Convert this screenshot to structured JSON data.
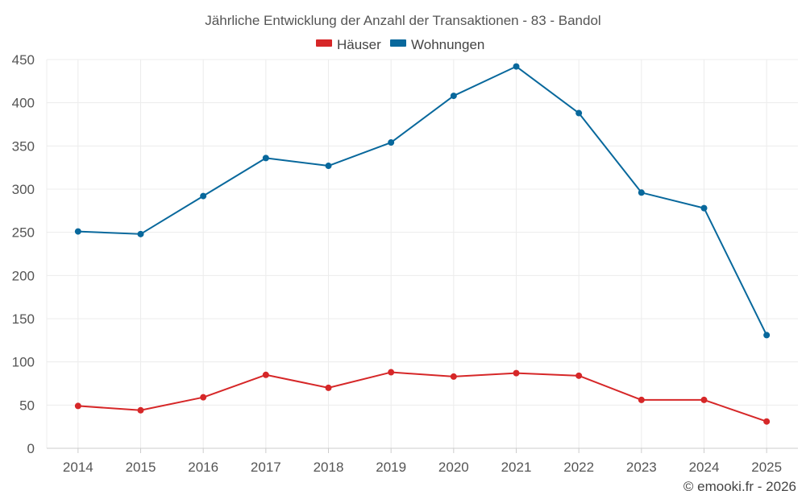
{
  "chart_data": {
    "type": "line",
    "title": "Jährliche Entwicklung der Anzahl der Transaktionen - 83 - Bandol",
    "categories": [
      "2014",
      "2015",
      "2016",
      "2017",
      "2018",
      "2019",
      "2020",
      "2021",
      "2022",
      "2023",
      "2024",
      "2025"
    ],
    "ylim": [
      0,
      450
    ],
    "yticks": [
      0,
      50,
      100,
      150,
      200,
      250,
      300,
      350,
      400,
      450
    ],
    "grid": true,
    "legend_position": "top-center",
    "series": [
      {
        "name": "Häuser",
        "color": "#d62728",
        "values": [
          49,
          44,
          59,
          85,
          70,
          88,
          83,
          87,
          84,
          56,
          56,
          31
        ]
      },
      {
        "name": "Wohnungen",
        "color": "#08689c",
        "values": [
          251,
          248,
          292,
          336,
          327,
          354,
          408,
          442,
          388,
          296,
          278,
          131
        ]
      }
    ]
  },
  "credit": "© emooki.fr - 2026"
}
